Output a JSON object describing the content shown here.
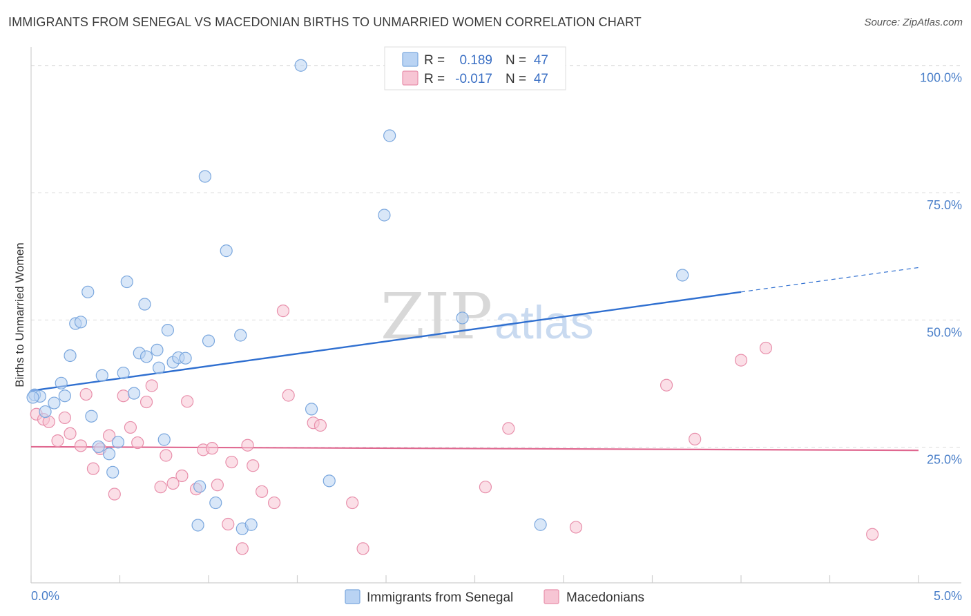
{
  "header": {
    "title": "IMMIGRANTS FROM SENEGAL VS MACEDONIAN BIRTHS TO UNMARRIED WOMEN CORRELATION CHART",
    "source": "Source: ZipAtlas.com"
  },
  "watermark": {
    "part1": "ZIP",
    "part2": "atlas"
  },
  "colors": {
    "series1_fill": "#b9d3f3",
    "series1_stroke": "#7aa7de",
    "series1_line": "#2f6fd0",
    "series2_fill": "#f7c5d4",
    "series2_stroke": "#e88fab",
    "series2_line": "#e06890",
    "accent_text": "#4a7fc9"
  },
  "stats": [
    {
      "r_label": "R =",
      "r_value": "0.189",
      "n_label": "N =",
      "n_value": "47"
    },
    {
      "r_label": "R =",
      "r_value": "-0.017",
      "n_label": "N =",
      "n_value": "47"
    }
  ],
  "chart_data": {
    "type": "scatter",
    "title": "IMMIGRANTS FROM SENEGAL VS MACEDONIAN BIRTHS TO UNMARRIED WOMEN CORRELATION CHART",
    "xlabel": "",
    "ylabel": "Births to Unmarried Women",
    "xlim": [
      0,
      5
    ],
    "ylim": [
      0,
      102
    ],
    "x_tick_labels": [
      "0.0%",
      "5.0%"
    ],
    "y_ticks": [
      25,
      50,
      75,
      100
    ],
    "y_tick_labels": [
      "25.0%",
      "50.0%",
      "75.0%",
      "100.0%"
    ],
    "grid": true,
    "series": [
      {
        "name": "Immigrants from Senegal",
        "trend": {
          "x0": 0,
          "y0": 36.1,
          "x1": 4.0,
          "y1": 55.5,
          "x_dash_end": 5.0,
          "y_dash_end": 60.3
        },
        "points": [
          [
            0.02,
            35.3
          ],
          [
            0.05,
            35.0
          ],
          [
            0.08,
            32.0
          ],
          [
            0.13,
            33.7
          ],
          [
            0.17,
            37.6
          ],
          [
            0.19,
            35.1
          ],
          [
            0.22,
            43.0
          ],
          [
            0.25,
            49.3
          ],
          [
            0.28,
            49.6
          ],
          [
            0.32,
            55.5
          ],
          [
            0.34,
            31.1
          ],
          [
            0.38,
            25.1
          ],
          [
            0.4,
            39.1
          ],
          [
            0.44,
            23.7
          ],
          [
            0.46,
            20.1
          ],
          [
            0.49,
            26.0
          ],
          [
            0.52,
            39.6
          ],
          [
            0.54,
            57.5
          ],
          [
            0.58,
            35.6
          ],
          [
            0.61,
            43.5
          ],
          [
            0.64,
            53.1
          ],
          [
            0.65,
            42.8
          ],
          [
            0.71,
            44.1
          ],
          [
            0.72,
            40.6
          ],
          [
            0.75,
            26.5
          ],
          [
            0.77,
            48.0
          ],
          [
            0.8,
            41.7
          ],
          [
            0.83,
            42.6
          ],
          [
            0.87,
            42.5
          ],
          [
            0.94,
            9.7
          ],
          [
            0.95,
            17.3
          ],
          [
            0.98,
            78.2
          ],
          [
            1.0,
            45.9
          ],
          [
            1.04,
            14.1
          ],
          [
            1.1,
            63.6
          ],
          [
            1.18,
            47.0
          ],
          [
            1.19,
            9.0
          ],
          [
            1.24,
            9.8
          ],
          [
            1.52,
            100.0
          ],
          [
            1.58,
            32.5
          ],
          [
            1.68,
            18.4
          ],
          [
            1.99,
            70.6
          ],
          [
            2.02,
            86.2
          ],
          [
            2.43,
            50.4
          ],
          [
            2.87,
            9.8
          ],
          [
            3.67,
            58.8
          ],
          [
            0.01,
            34.8
          ]
        ]
      },
      {
        "name": "Macedonians",
        "trend": {
          "x0": 0,
          "y0": 25.1,
          "x1": 5.0,
          "y1": 24.4
        },
        "points": [
          [
            0.03,
            31.5
          ],
          [
            0.07,
            30.5
          ],
          [
            0.1,
            30.0
          ],
          [
            0.15,
            26.3
          ],
          [
            0.19,
            30.8
          ],
          [
            0.22,
            27.7
          ],
          [
            0.28,
            25.3
          ],
          [
            0.31,
            35.4
          ],
          [
            0.35,
            20.8
          ],
          [
            0.39,
            24.7
          ],
          [
            0.44,
            27.3
          ],
          [
            0.47,
            15.8
          ],
          [
            0.52,
            35.1
          ],
          [
            0.56,
            28.9
          ],
          [
            0.6,
            25.9
          ],
          [
            0.65,
            33.9
          ],
          [
            0.68,
            37.1
          ],
          [
            0.73,
            17.2
          ],
          [
            0.76,
            23.4
          ],
          [
            0.8,
            17.9
          ],
          [
            0.85,
            19.4
          ],
          [
            0.88,
            34.0
          ],
          [
            0.93,
            16.8
          ],
          [
            0.97,
            24.5
          ],
          [
            1.02,
            24.8
          ],
          [
            1.05,
            17.6
          ],
          [
            1.11,
            9.9
          ],
          [
            1.13,
            22.1
          ],
          [
            1.19,
            5.1
          ],
          [
            1.22,
            25.4
          ],
          [
            1.25,
            21.4
          ],
          [
            1.3,
            16.3
          ],
          [
            1.37,
            14.1
          ],
          [
            1.42,
            51.8
          ],
          [
            1.45,
            35.2
          ],
          [
            1.59,
            29.8
          ],
          [
            1.63,
            29.3
          ],
          [
            1.81,
            14.1
          ],
          [
            1.87,
            5.1
          ],
          [
            2.56,
            17.2
          ],
          [
            2.69,
            28.7
          ],
          [
            3.07,
            9.3
          ],
          [
            3.58,
            37.2
          ],
          [
            3.74,
            26.6
          ],
          [
            4.0,
            42.1
          ],
          [
            4.14,
            44.5
          ],
          [
            4.74,
            7.9
          ]
        ]
      }
    ]
  }
}
